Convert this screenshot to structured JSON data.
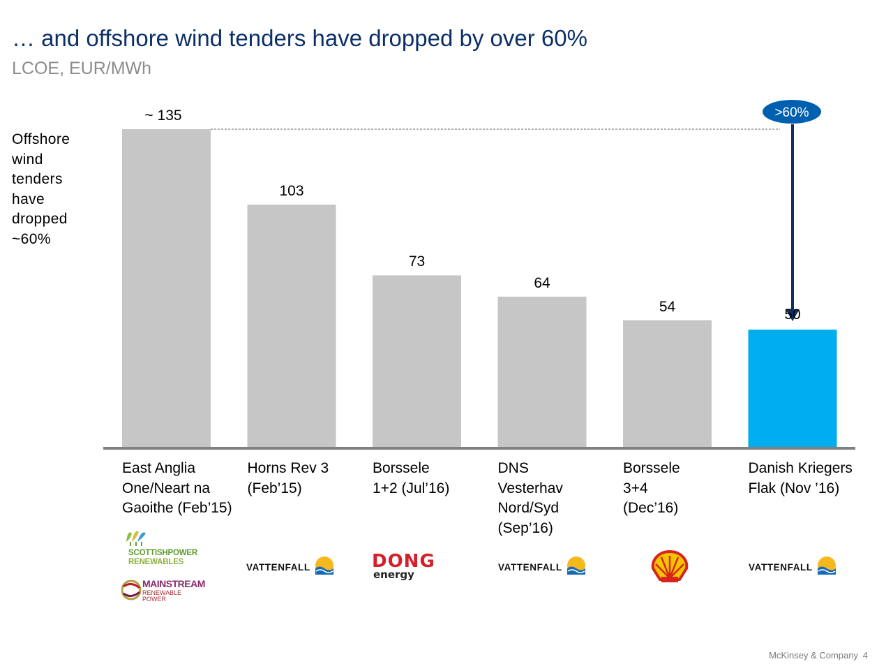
{
  "title": "… and offshore wind tenders have dropped by over 60%",
  "subtitle": "LCOE, EUR/MWh",
  "side_note": [
    "Offshore",
    "wind",
    "tenders",
    "have",
    "dropped",
    "~60%"
  ],
  "callout": ">60%",
  "colors": {
    "bar": "#c6c6c6",
    "highlight": "#00aeef",
    "title": "#0c2f66",
    "callout": "#0060b0",
    "arrow": "#0c2f66"
  },
  "chart_data": {
    "type": "bar",
    "categories": [
      "East Anglia One/Neart na Gaoithe (Feb’15)",
      "Horns Rev 3 (Feb’15)",
      "Borssele 1+2 (Jul’16)",
      "DNS Vesterhav Nord/Syd (Sep’16)",
      "Borssele 3+4 (Dec’16)",
      "Danish Kriegers Flak (Nov ’16)"
    ],
    "values": [
      135,
      103,
      73,
      64,
      54,
      50
    ],
    "value_labels": [
      "~ 135",
      "103",
      "73",
      "64",
      "54",
      "50"
    ],
    "highlight_index": 5,
    "ylim": [
      0,
      135
    ]
  },
  "category_lines": [
    [
      "East Anglia",
      "One/Neart na",
      "Gaoithe (Feb’15)"
    ],
    [
      "Horns Rev 3",
      "(Feb’15)"
    ],
    [
      "Borssele",
      "1+2 (Jul’16)"
    ],
    [
      "DNS",
      "Vesterhav",
      "Nord/Syd",
      "(Sep’16)"
    ],
    [
      "Borssele",
      "3+4",
      "(Dec’16)"
    ],
    [
      "Danish Kriegers",
      "Flak (Nov ’16)"
    ]
  ],
  "logos": {
    "scottishpower": [
      "SCOTTISHPOWER",
      "RENEWABLES"
    ],
    "mainstream": [
      "MAINSTREAM",
      "RENEWABLE",
      "POWER"
    ],
    "vattenfall": "VATTENFALL",
    "dong": [
      "DONG",
      "energy"
    ]
  },
  "footer": {
    "company": "McKinsey & Company",
    "page": "4"
  }
}
